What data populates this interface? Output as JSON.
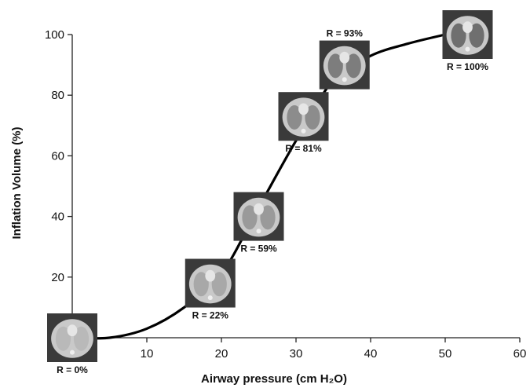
{
  "chart_data": {
    "type": "line",
    "title": "",
    "xlabel": "Airway pressure (cm H₂O)",
    "ylabel": "Inflation Volume (%)",
    "xlim": [
      0,
      60
    ],
    "ylim": [
      0,
      100
    ],
    "xticks": [
      10,
      20,
      30,
      40,
      50,
      60
    ],
    "yticks": [
      20,
      40,
      60,
      80,
      100
    ],
    "grid": false,
    "legend": "none",
    "colors": {
      "curve": "#000000",
      "axis": "#222222",
      "scan_background": "#3a3a3a"
    },
    "series": [
      {
        "x": [
          0,
          5,
          10,
          15,
          20,
          25,
          30,
          35,
          40,
          45,
          50
        ],
        "values": [
          0,
          0,
          3,
          10,
          21,
          43,
          65,
          85,
          93,
          97,
          100
        ]
      }
    ],
    "annotations": [
      {
        "label": "R = 0%",
        "x": 0,
        "y": 0,
        "label_position": "below",
        "image": "ct-lung-scan"
      },
      {
        "label": "R = 22%",
        "x": 18.5,
        "y": 18,
        "label_position": "below",
        "image": "ct-lung-scan"
      },
      {
        "label": "R = 59%",
        "x": 25,
        "y": 40,
        "label_position": "below",
        "image": "ct-lung-scan"
      },
      {
        "label": "R = 81%",
        "x": 31,
        "y": 73,
        "label_position": "below",
        "image": "ct-lung-scan"
      },
      {
        "label": "R = 93%",
        "x": 36.5,
        "y": 90,
        "label_position": "above",
        "image": "ct-lung-scan"
      },
      {
        "label": "R = 100%",
        "x": 53,
        "y": 100,
        "label_position": "below",
        "image": "ct-lung-scan"
      }
    ]
  }
}
